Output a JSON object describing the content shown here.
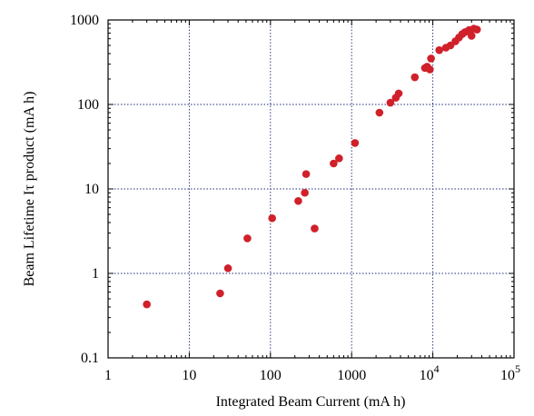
{
  "chart_data": {
    "type": "scatter",
    "xlabel": "Integrated Beam Current (mA h)",
    "ylabel": "Beam Lifetime Iτ product (mA h)",
    "x_scale": "log",
    "y_scale": "log",
    "xlim": [
      1,
      100000
    ],
    "ylim": [
      0.1,
      1000
    ],
    "grid": true,
    "x_ticks": [
      {
        "value": 1,
        "label": "1"
      },
      {
        "value": 10,
        "label": "10"
      },
      {
        "value": 100,
        "label": "100"
      },
      {
        "value": 1000,
        "label": "1000"
      },
      {
        "value": 10000,
        "label": "10",
        "exp": "4"
      },
      {
        "value": 100000,
        "label": "10",
        "exp": "5"
      }
    ],
    "y_ticks": [
      {
        "value": 0.1,
        "label": "0.1"
      },
      {
        "value": 1,
        "label": "1"
      },
      {
        "value": 10,
        "label": "10"
      },
      {
        "value": 100,
        "label": "100"
      },
      {
        "value": 1000,
        "label": "1000"
      }
    ],
    "marker_color": "#d0202a",
    "points": [
      {
        "x": 3,
        "y": 0.43
      },
      {
        "x": 24,
        "y": 0.58
      },
      {
        "x": 30,
        "y": 1.15
      },
      {
        "x": 52,
        "y": 2.6
      },
      {
        "x": 105,
        "y": 4.5
      },
      {
        "x": 220,
        "y": 7.2
      },
      {
        "x": 265,
        "y": 9.0
      },
      {
        "x": 275,
        "y": 15
      },
      {
        "x": 350,
        "y": 3.4
      },
      {
        "x": 600,
        "y": 20
      },
      {
        "x": 700,
        "y": 23
      },
      {
        "x": 1100,
        "y": 35
      },
      {
        "x": 2200,
        "y": 80
      },
      {
        "x": 3000,
        "y": 105
      },
      {
        "x": 3500,
        "y": 120
      },
      {
        "x": 3800,
        "y": 135
      },
      {
        "x": 6000,
        "y": 210
      },
      {
        "x": 8000,
        "y": 270
      },
      {
        "x": 8500,
        "y": 280
      },
      {
        "x": 9200,
        "y": 260
      },
      {
        "x": 9500,
        "y": 350
      },
      {
        "x": 12000,
        "y": 440
      },
      {
        "x": 14500,
        "y": 470
      },
      {
        "x": 16500,
        "y": 500
      },
      {
        "x": 19000,
        "y": 560
      },
      {
        "x": 21000,
        "y": 620
      },
      {
        "x": 23000,
        "y": 680
      },
      {
        "x": 25000,
        "y": 720
      },
      {
        "x": 28000,
        "y": 760
      },
      {
        "x": 30000,
        "y": 650
      },
      {
        "x": 32000,
        "y": 790
      },
      {
        "x": 35000,
        "y": 770
      }
    ]
  }
}
